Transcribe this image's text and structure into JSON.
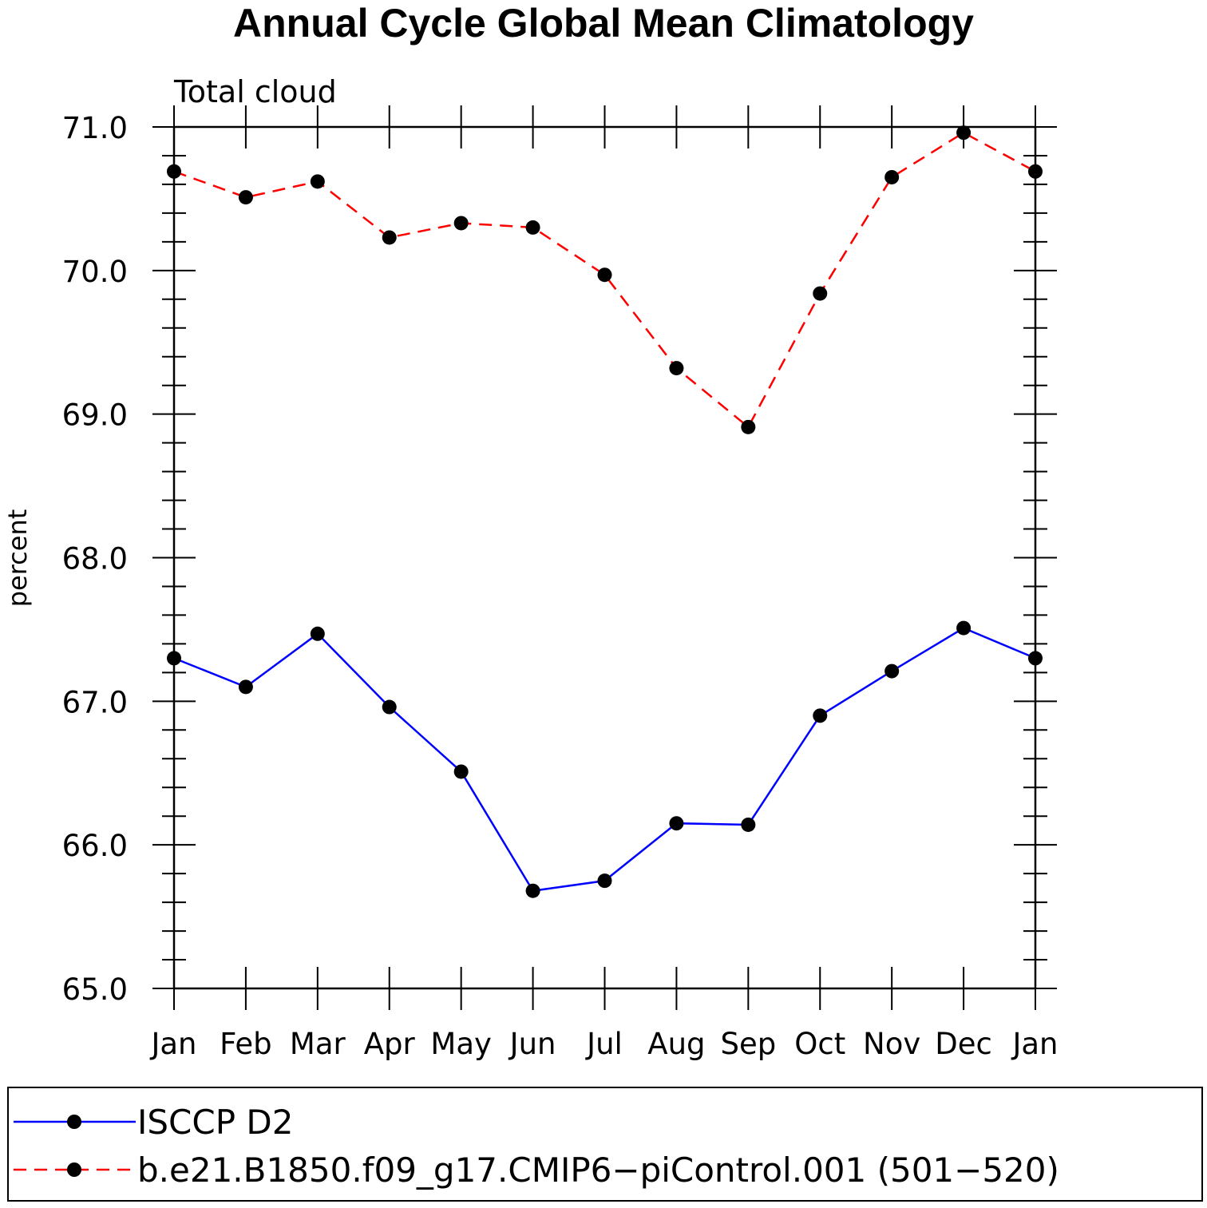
{
  "chart_data": {
    "type": "line",
    "title": "Annual Cycle Global Mean Climatology",
    "subtitle": "Total cloud",
    "xlabel": "",
    "ylabel": "percent",
    "categories": [
      "Jan",
      "Feb",
      "Mar",
      "Apr",
      "May",
      "Jun",
      "Jul",
      "Aug",
      "Sep",
      "Oct",
      "Nov",
      "Dec",
      "Jan"
    ],
    "ylim": [
      65.0,
      71.0
    ],
    "yticks": [
      "65.0",
      "66.0",
      "67.0",
      "68.0",
      "69.0",
      "70.0",
      "71.0"
    ],
    "grid": false,
    "legend_position": "bottom",
    "series": [
      {
        "name": "ISCCP D2",
        "color": "#0000ff",
        "style": "solid",
        "marker": "circle",
        "values": [
          67.3,
          67.1,
          67.47,
          66.96,
          66.51,
          65.68,
          65.75,
          66.15,
          66.14,
          66.9,
          67.21,
          67.51,
          67.3
        ]
      },
      {
        "name": "b.e21.B1850.f09_g17.CMIP6−piControl.001 (501−520)",
        "color": "#ff0000",
        "style": "dashed",
        "marker": "circle",
        "values": [
          70.69,
          70.51,
          70.62,
          70.23,
          70.33,
          70.3,
          69.97,
          69.32,
          68.91,
          69.84,
          70.65,
          70.96,
          70.69
        ]
      }
    ]
  }
}
